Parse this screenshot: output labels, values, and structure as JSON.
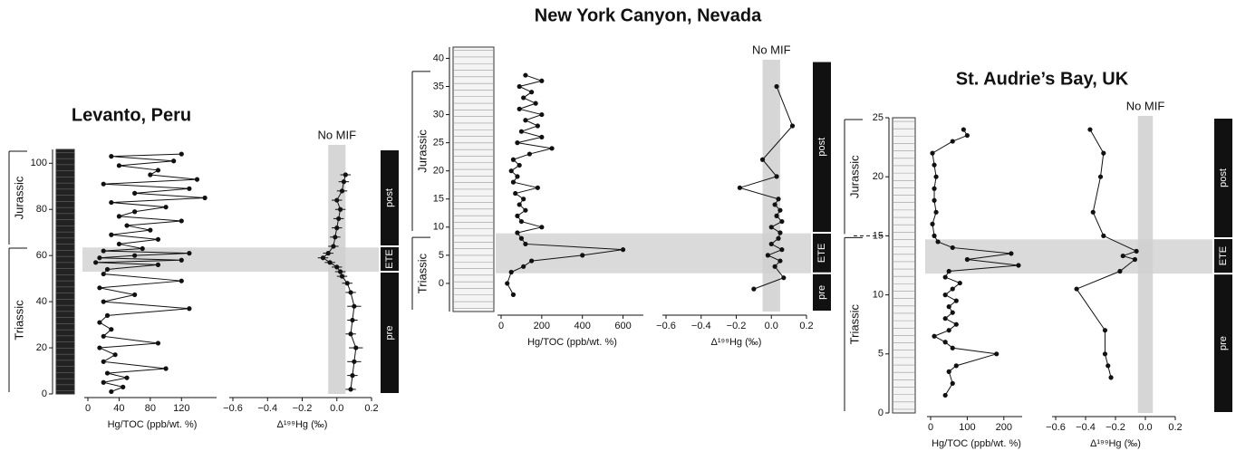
{
  "chart_data": [
    {
      "type": "line",
      "title": "Levanto, Peru",
      "x_label": "Hg/TOC (ppb/wt. %)",
      "xlim": [
        0,
        165
      ],
      "xticks": [
        0,
        40,
        80,
        120
      ],
      "ylim": [
        0,
        106
      ],
      "yticks": [
        0,
        20,
        40,
        60,
        80,
        100
      ],
      "periods": [
        {
          "label": "Jurassic",
          "from": 64,
          "to": 106
        },
        {
          "label": "Triassic",
          "from": 0,
          "to": 64
        }
      ],
      "zones": [
        {
          "label": "post",
          "from": 64,
          "to": 106
        },
        {
          "label": "ETE",
          "from": 53,
          "to": 64
        },
        {
          "label": "pre",
          "from": 0,
          "to": 53
        }
      ],
      "event_band": [
        53,
        63.5
      ],
      "color": "#111111",
      "x": [
        30,
        45,
        20,
        50,
        25,
        100,
        20,
        35,
        15,
        90,
        20,
        30,
        15,
        25,
        130,
        20,
        60,
        15,
        120,
        20,
        25,
        90,
        10,
        120,
        15,
        60,
        130,
        20,
        70,
        40,
        90,
        30,
        80,
        50,
        120,
        40,
        60,
        100,
        30,
        150,
        60,
        130,
        20,
        140,
        80,
        90,
        40,
        110,
        30,
        120
      ],
      "y": [
        1,
        3,
        5,
        7,
        9,
        11,
        14,
        17,
        20,
        22,
        25,
        28,
        31,
        34,
        37,
        40,
        43,
        46,
        49,
        52,
        54,
        56,
        57,
        58,
        59,
        60,
        61,
        62,
        63,
        65,
        67,
        69,
        71,
        73,
        75,
        77,
        79,
        81,
        83,
        85,
        87,
        89,
        91,
        93,
        95,
        97,
        99,
        101,
        103,
        104
      ]
    },
    {
      "type": "line",
      "annotation": "No MIF",
      "x_label": "Δ¹⁹⁹Hg (‰)",
      "xlim": [
        -0.6,
        0.2
      ],
      "xticks": [
        {
          "value": -0.6,
          "label": "−0.6"
        },
        {
          "value": -0.4,
          "label": "−0.4"
        },
        {
          "value": -0.2,
          "label": "−0.2"
        },
        {
          "value": 0,
          "label": "0.0"
        },
        0.2
      ],
      "ylim": [
        0,
        106
      ],
      "no_mif_band": [
        -0.05,
        0.05
      ],
      "color": "#111111",
      "x": [
        0.08,
        0.09,
        0.1,
        0.11,
        0.08,
        0.09,
        0.1,
        0.08,
        0.06,
        0.03,
        0.02,
        0.0,
        -0.04,
        -0.08,
        -0.05,
        -0.02,
        -0.01,
        0.0,
        0.01,
        0.02,
        0.0,
        0.03,
        0.04,
        0.05
      ],
      "xerr": [
        0.03,
        0.03,
        0.04,
        0.04,
        0.03,
        0.03,
        0.04,
        0.03,
        0.03,
        0.03,
        0.03,
        0.03,
        0.03,
        0.03,
        0.03,
        0.03,
        0.03,
        0.03,
        0.03,
        0.03,
        0.03,
        0.03,
        0.03,
        0.03
      ],
      "y": [
        2,
        8,
        14,
        20,
        26,
        32,
        38,
        44,
        48,
        51,
        53,
        55,
        57,
        59,
        61,
        64,
        68,
        72,
        76,
        80,
        84,
        88,
        92,
        95
      ]
    },
    {
      "type": "line",
      "title": "New York Canyon, Nevada",
      "x_label": "Hg/TOC (ppb/wt. %)",
      "xlim": [
        0,
        700
      ],
      "xticks": [
        0,
        200,
        400,
        600
      ],
      "ylim": [
        -5,
        42
      ],
      "yticks": [
        0,
        5,
        10,
        15,
        20,
        25,
        30,
        35,
        40
      ],
      "periods": [
        {
          "label": "Jurassic",
          "from": 9,
          "to": 38
        },
        {
          "label": "Triassic",
          "from": -5,
          "to": 8.5
        }
      ],
      "zones": [
        {
          "label": "post",
          "from": 9,
          "to": 39.5
        },
        {
          "label": "ETE",
          "from": 1.8,
          "to": 9
        },
        {
          "label": "pre",
          "from": -5,
          "to": 1.8
        }
      ],
      "event_band": [
        1.8,
        8.9
      ],
      "color": "#111111",
      "x": [
        60,
        30,
        50,
        110,
        150,
        400,
        600,
        120,
        100,
        80,
        200,
        100,
        80,
        120,
        90,
        110,
        70,
        180,
        60,
        80,
        50,
        90,
        60,
        140,
        250,
        80,
        200,
        100,
        180,
        120,
        200,
        90,
        170,
        110,
        150,
        90,
        200,
        120
      ],
      "y": [
        -2,
        0,
        2,
        3,
        4,
        5,
        6,
        7,
        8,
        9,
        10,
        11,
        12,
        13,
        14,
        15,
        16,
        17,
        18,
        19,
        20,
        21,
        22,
        23,
        24,
        25,
        26,
        27,
        28,
        29,
        30,
        31,
        32,
        33,
        34,
        35,
        36,
        37
      ]
    },
    {
      "type": "line",
      "annotation": "No MIF",
      "x_label": "Δ¹⁹⁹Hg (‰)",
      "xlim": [
        -0.6,
        0.2
      ],
      "xticks": [
        {
          "value": -0.6,
          "label": "−0.6"
        },
        {
          "value": -0.4,
          "label": "−0.4"
        },
        {
          "value": -0.2,
          "label": "−0.2"
        },
        {
          "value": 0,
          "label": "0.0"
        },
        0.2
      ],
      "ylim": [
        -5,
        42
      ],
      "no_mif_band": [
        -0.05,
        0.05
      ],
      "color": "#111111",
      "x": [
        -0.1,
        0.07,
        0.02,
        0.05,
        -0.02,
        0.06,
        0.0,
        0.04,
        0.05,
        0.0,
        0.06,
        0.03,
        0.05,
        0.02,
        0.04,
        -0.18,
        0.03,
        -0.05,
        0.12,
        0.03
      ],
      "y": [
        -1,
        1,
        3,
        4,
        5,
        6,
        7,
        8,
        9,
        10,
        11,
        12,
        13,
        14,
        15,
        17,
        19,
        22,
        28,
        35
      ]
    },
    {
      "type": "line",
      "title": "St. Audrie’s Bay, UK",
      "x_label": "Hg/TOC (ppb/wt. %)",
      "xlim": [
        0,
        250
      ],
      "xticks": [
        0,
        100,
        200
      ],
      "ylim": [
        0,
        25
      ],
      "yticks": [
        0,
        5,
        10,
        15,
        20,
        25
      ],
      "periods": [
        {
          "label": "Jurassic",
          "from": 15,
          "to": 25
        },
        {
          "label": "Triassic",
          "from": 0,
          "to": 15
        }
      ],
      "zones": [
        {
          "label": "post",
          "from": 14.8,
          "to": 25
        },
        {
          "label": "ETE",
          "from": 11.8,
          "to": 14.8
        },
        {
          "label": "pre",
          "from": 0,
          "to": 11.8
        }
      ],
      "event_band": [
        11.8,
        14.7
      ],
      "color": "#111111",
      "x": [
        40,
        60,
        50,
        70,
        180,
        60,
        40,
        10,
        50,
        70,
        40,
        60,
        50,
        70,
        40,
        60,
        80,
        40,
        50,
        240,
        100,
        220,
        60,
        20,
        10,
        5,
        15,
        10,
        10,
        15,
        10,
        5,
        60,
        100,
        90
      ],
      "y": [
        1.5,
        2.5,
        3.5,
        4,
        5,
        5.5,
        6,
        6.5,
        7,
        7.5,
        8,
        8.5,
        9,
        9.5,
        10,
        10.5,
        11,
        11.5,
        12,
        12.5,
        13,
        13.5,
        14,
        14.5,
        15,
        16,
        17,
        18,
        19,
        20,
        21,
        22,
        23,
        23.5,
        24
      ]
    },
    {
      "type": "line",
      "annotation": "No MIF",
      "x_label": "Δ¹⁹⁹Hg (‰)",
      "xlim": [
        -0.6,
        0.2
      ],
      "xticks": [
        {
          "value": -0.6,
          "label": "−0.6"
        },
        {
          "value": -0.4,
          "label": "−0.4"
        },
        {
          "value": -0.2,
          "label": "−0.2"
        },
        {
          "value": 0,
          "label": "0.0"
        },
        0.2
      ],
      "ylim": [
        0,
        25
      ],
      "no_mif_band": [
        -0.05,
        0.05
      ],
      "color": "#111111",
      "x": [
        -0.23,
        -0.25,
        -0.27,
        -0.27,
        -0.46,
        -0.17,
        -0.07,
        -0.15,
        -0.06,
        -0.28,
        -0.35,
        -0.3,
        -0.28,
        -0.37
      ],
      "y": [
        3,
        4,
        5,
        7,
        10.5,
        12,
        13,
        13.3,
        13.7,
        15,
        17,
        20,
        22,
        24
      ]
    }
  ]
}
